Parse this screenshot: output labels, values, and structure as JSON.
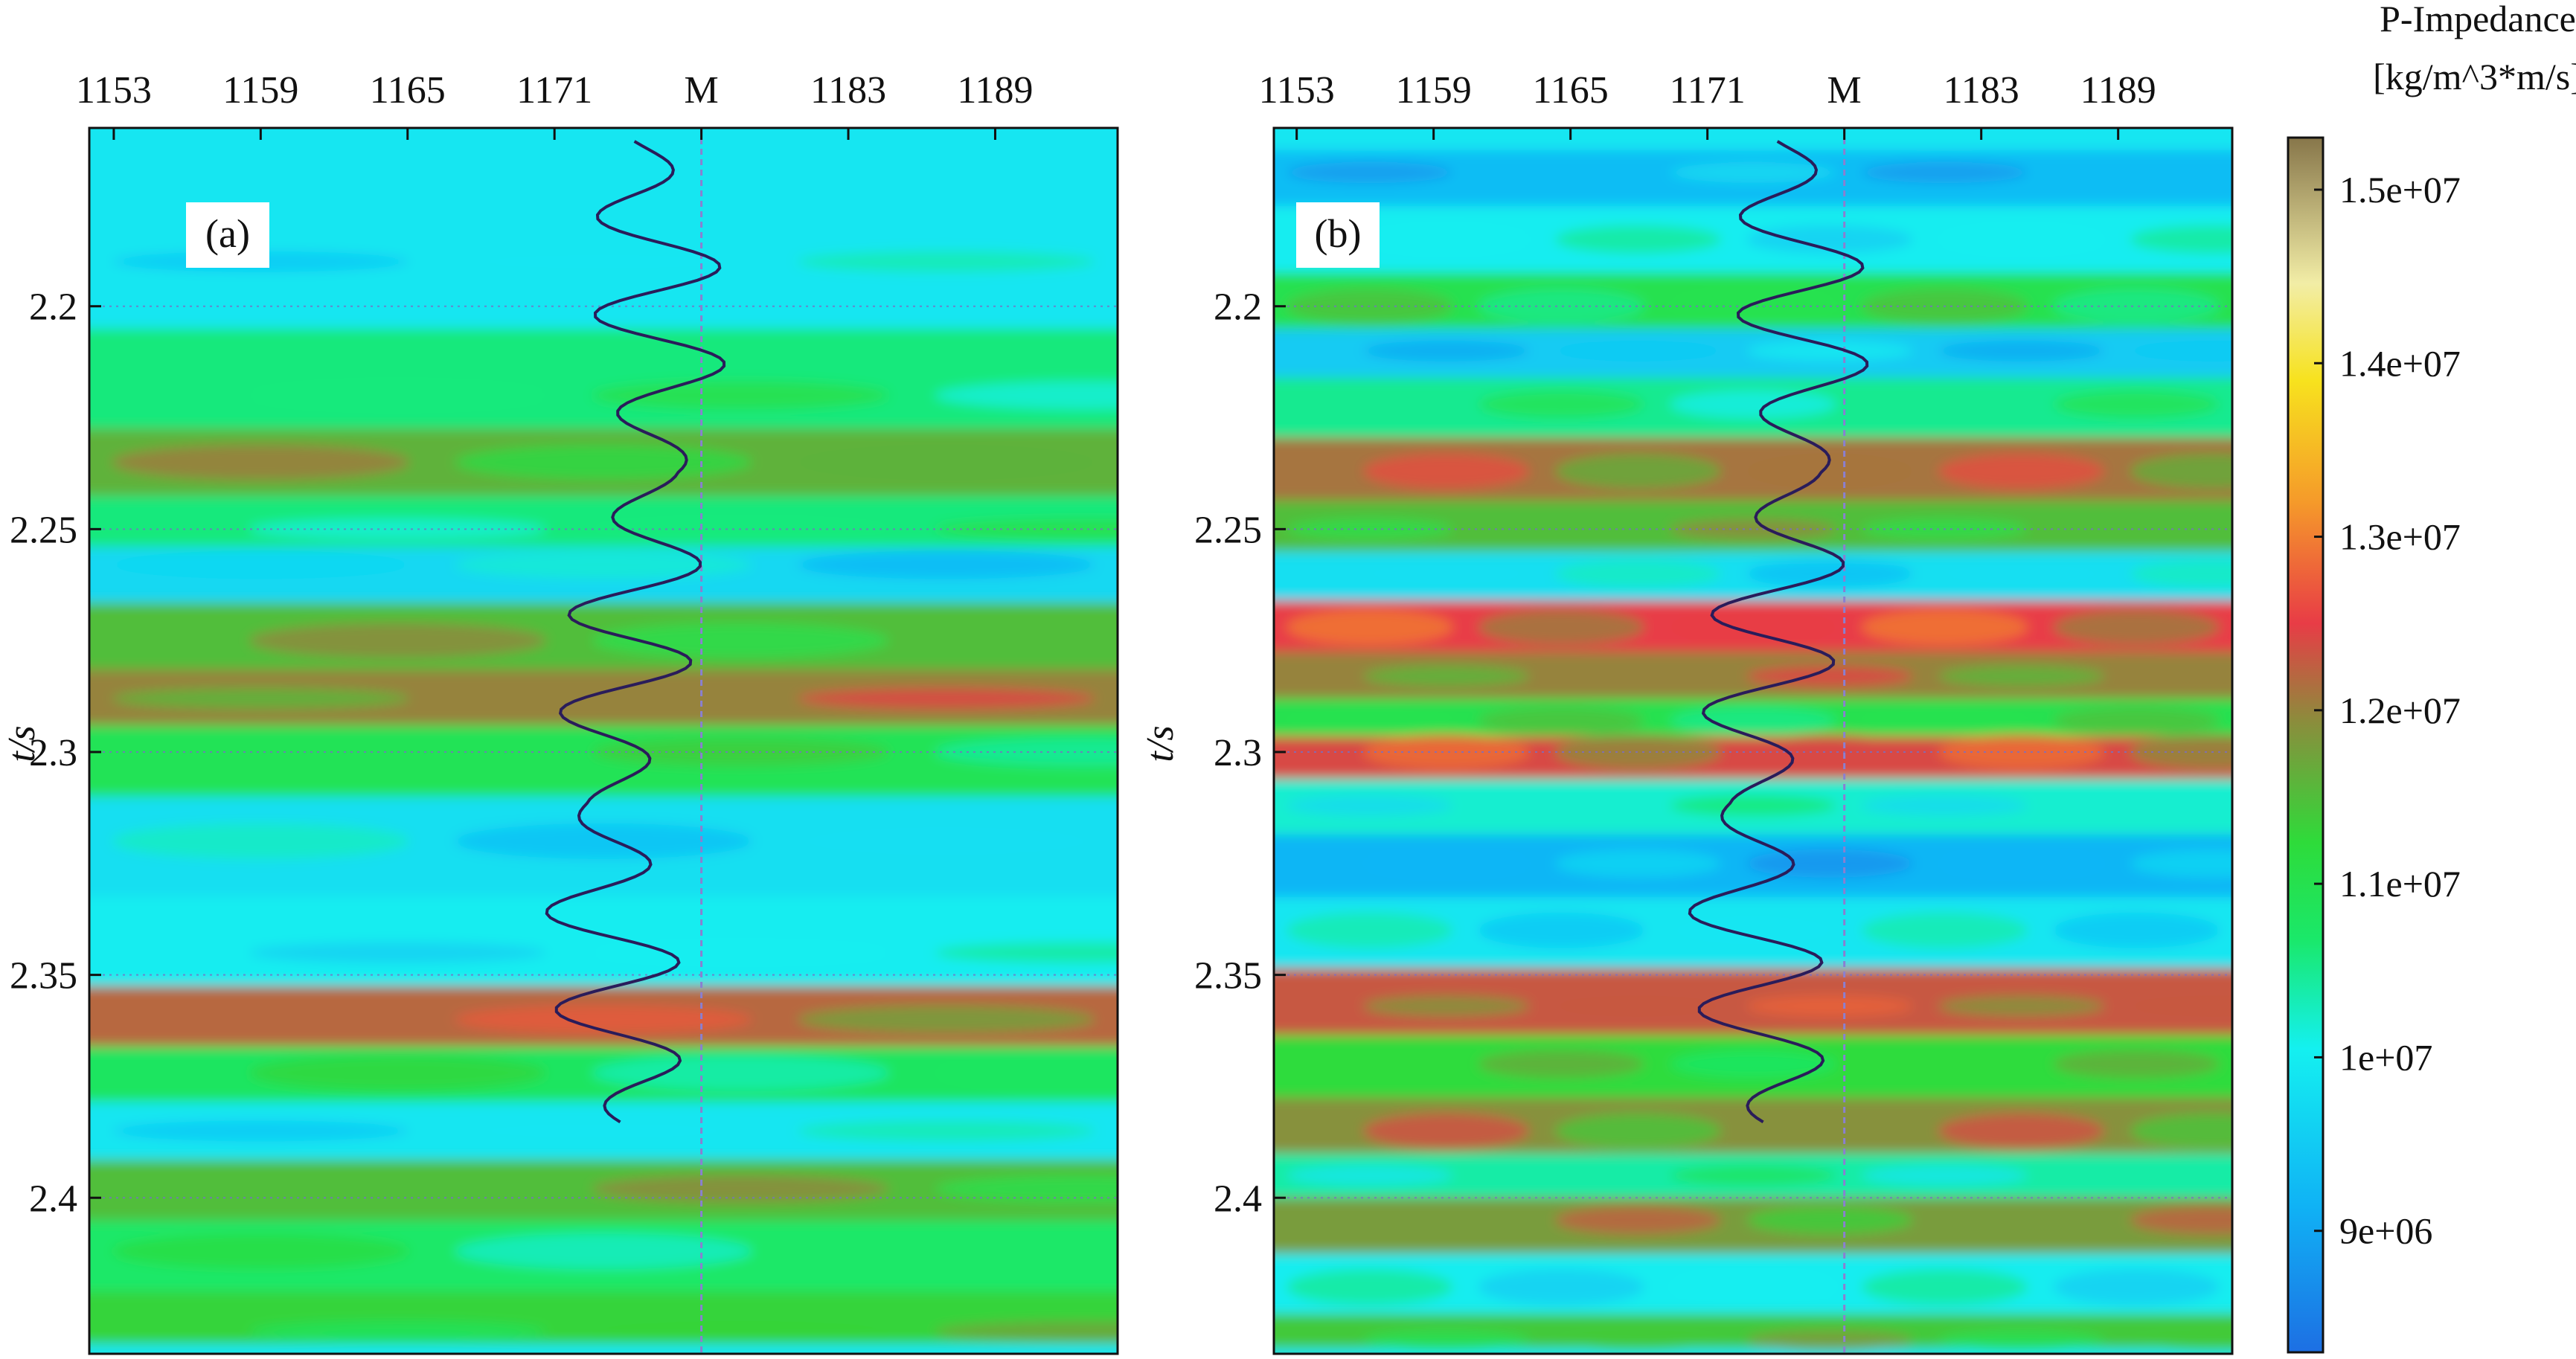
{
  "colors": {
    "colormap": [
      "#1d6fe3",
      "#10b2f5",
      "#14f0f0",
      "#1ae86a",
      "#2edb3a",
      "#8c8c3c",
      "#e83c46",
      "#f59a2a",
      "#f7e21e",
      "#f2eda6",
      "#87764a"
    ],
    "well_log": "#2a1c5a",
    "marker_line": "#8a7fd0"
  },
  "chart_data": [
    {
      "type": "heatmap",
      "panel_label": "(a)",
      "x_tick_labels": [
        "1153",
        "1159",
        "1165",
        "1171",
        "M",
        "1183",
        "1189"
      ],
      "x_tick_values": [
        1153,
        1159,
        1165,
        1171,
        1177,
        1183,
        1189
      ],
      "xlim": [
        1152,
        1194
      ],
      "ylabel": "t/s",
      "y_tick_labels": [
        "2.2",
        "2.25",
        "2.3",
        "2.35",
        "2.4"
      ],
      "y_tick_values": [
        2.2,
        2.25,
        2.3,
        2.35,
        2.4
      ],
      "ylim": [
        2.16,
        2.435
      ],
      "well_trace": "M",
      "layers": [
        {
          "t": 2.19,
          "v": 9900000.0
        },
        {
          "t": 2.22,
          "v": 10600000.0
        },
        {
          "t": 2.235,
          "v": 11600000.0
        },
        {
          "t": 2.25,
          "v": 10600000.0
        },
        {
          "t": 2.258,
          "v": 9700000.0
        },
        {
          "t": 2.275,
          "v": 11500000.0
        },
        {
          "t": 2.288,
          "v": 12000000.0
        },
        {
          "t": 2.3,
          "v": 10900000.0
        },
        {
          "t": 2.32,
          "v": 9800000.0
        },
        {
          "t": 2.345,
          "v": 10000000.0
        },
        {
          "t": 2.36,
          "v": 12200000.0
        },
        {
          "t": 2.372,
          "v": 10800000.0
        },
        {
          "t": 2.385,
          "v": 9900000.0
        },
        {
          "t": 2.398,
          "v": 11500000.0
        },
        {
          "t": 2.412,
          "v": 10700000.0
        },
        {
          "t": 2.43,
          "v": 11300000.0
        }
      ]
    },
    {
      "type": "heatmap",
      "panel_label": "(b)",
      "x_tick_labels": [
        "1153",
        "1159",
        "1165",
        "1171",
        "M",
        "1183",
        "1189"
      ],
      "x_tick_values": [
        1153,
        1159,
        1165,
        1171,
        1177,
        1183,
        1189
      ],
      "xlim": [
        1152,
        1194
      ],
      "ylabel": "t/s",
      "y_tick_labels": [
        "2.2",
        "2.25",
        "2.3",
        "2.35",
        "2.4"
      ],
      "y_tick_values": [
        2.2,
        2.25,
        2.3,
        2.35,
        2.4
      ],
      "ylim": [
        2.16,
        2.435
      ],
      "well_trace": "M",
      "layers": [
        {
          "t": 2.17,
          "v": 9300000.0
        },
        {
          "t": 2.185,
          "v": 10000000.0
        },
        {
          "t": 2.2,
          "v": 11000000.0
        },
        {
          "t": 2.21,
          "v": 9500000.0
        },
        {
          "t": 2.222,
          "v": 10500000.0
        },
        {
          "t": 2.237,
          "v": 12100000.0
        },
        {
          "t": 2.25,
          "v": 11500000.0
        },
        {
          "t": 2.26,
          "v": 9800000.0
        },
        {
          "t": 2.272,
          "v": 12500000.0
        },
        {
          "t": 2.283,
          "v": 12000000.0
        },
        {
          "t": 2.293,
          "v": 11000000.0
        },
        {
          "t": 2.3,
          "v": 12400000.0
        },
        {
          "t": 2.312,
          "v": 10200000.0
        },
        {
          "t": 2.325,
          "v": 9200000.0
        },
        {
          "t": 2.34,
          "v": 9900000.0
        },
        {
          "t": 2.357,
          "v": 12300000.0
        },
        {
          "t": 2.37,
          "v": 11200000.0
        },
        {
          "t": 2.385,
          "v": 11900000.0
        },
        {
          "t": 2.395,
          "v": 10400000.0
        },
        {
          "t": 2.405,
          "v": 11800000.0
        },
        {
          "t": 2.42,
          "v": 10000000.0
        },
        {
          "t": 2.432,
          "v": 11400000.0
        }
      ]
    }
  ],
  "colorbar": {
    "title_line1": "P-Impedance",
    "title_line2": "[kg/m^3*m/s]",
    "tick_labels": [
      "1.5e+07",
      "1.4e+07",
      "1.3e+07",
      "1.2e+07",
      "1.1e+07",
      "1e+07",
      "9e+06"
    ],
    "tick_values": [
      15000000.0,
      14000000.0,
      13000000.0,
      12000000.0,
      11000000.0,
      10000000.0,
      9000000.0
    ],
    "range": [
      8300000.0,
      15300000.0
    ]
  }
}
